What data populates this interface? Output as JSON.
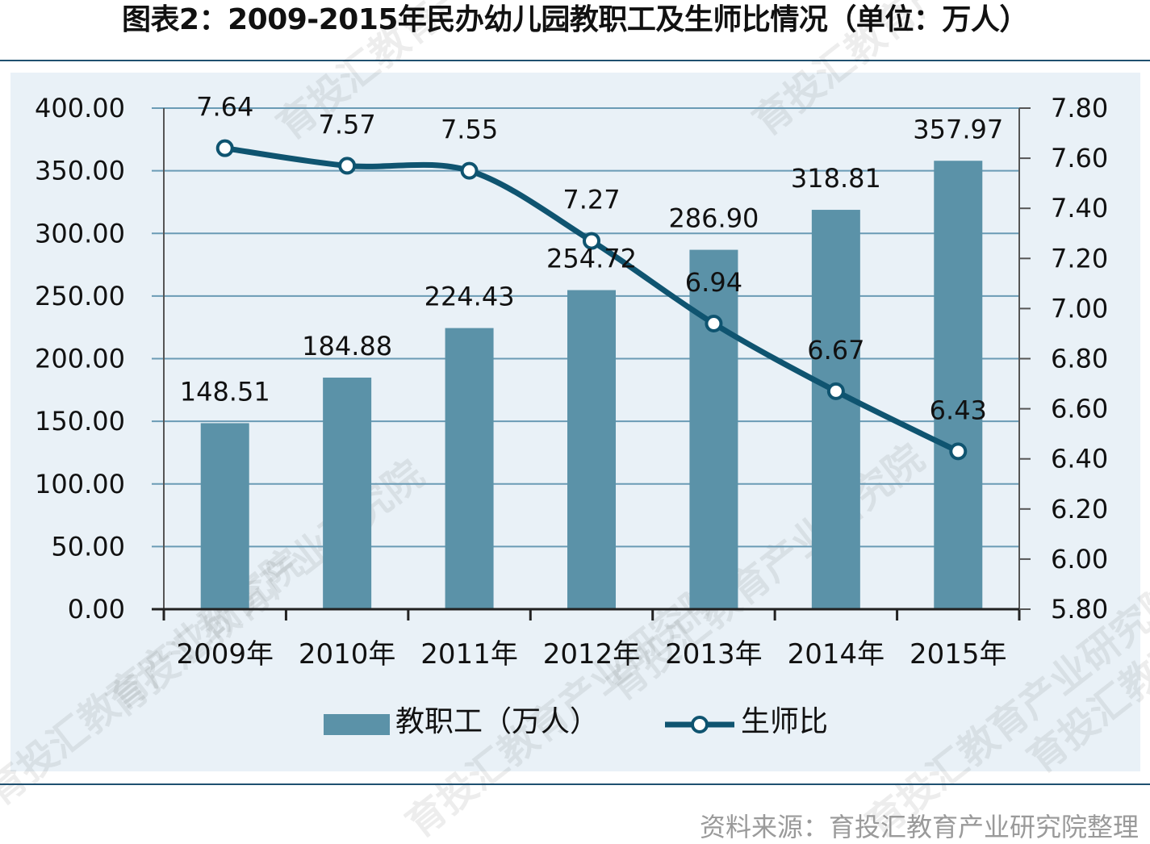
{
  "title": "图表2：2009-2015年民办幼儿园教职工及生师比情况（单位：万人）",
  "source": "资料来源：育投汇教育产业研究院整理",
  "watermark": "育投汇教育产业研究院",
  "colors": {
    "bar": "#5b92a8",
    "line": "#0f5470",
    "plot_bg": "#e9f1f7",
    "grid": "#6a9bb5",
    "rule": "#1f5070"
  },
  "chart_data": {
    "type": "bar",
    "title": "图表2：2009-2015年民办幼儿园教职工及生师比情况（单位：万人）",
    "categories": [
      "2009年",
      "2010年",
      "2011年",
      "2012年",
      "2013年",
      "2014年",
      "2015年"
    ],
    "series": [
      {
        "name": "教职工（万人）",
        "type": "bar",
        "axis": "left",
        "values": [
          148.51,
          184.88,
          224.43,
          254.72,
          286.9,
          318.81,
          357.97
        ],
        "labels": [
          "148.51",
          "184.88",
          "224.43",
          "254.72",
          "286.90",
          "318.81",
          "357.97"
        ]
      },
      {
        "name": "生师比",
        "type": "line",
        "axis": "right",
        "values": [
          7.64,
          7.57,
          7.55,
          7.27,
          6.94,
          6.67,
          6.43
        ],
        "labels": [
          "7.64",
          "7.57",
          "7.55",
          "7.27",
          "6.94",
          "6.67",
          "6.43"
        ]
      }
    ],
    "y_left": {
      "min": 0,
      "max": 400,
      "ticks": [
        "0.00",
        "50.00",
        "100.00",
        "150.00",
        "200.00",
        "250.00",
        "300.00",
        "350.00",
        "400.00"
      ]
    },
    "y_right": {
      "min": 5.8,
      "max": 7.8,
      "ticks": [
        "5.80",
        "6.00",
        "6.20",
        "6.40",
        "6.60",
        "6.80",
        "7.00",
        "7.20",
        "7.40",
        "7.60",
        "7.80"
      ]
    },
    "grid": true,
    "legend_position": "bottom"
  }
}
